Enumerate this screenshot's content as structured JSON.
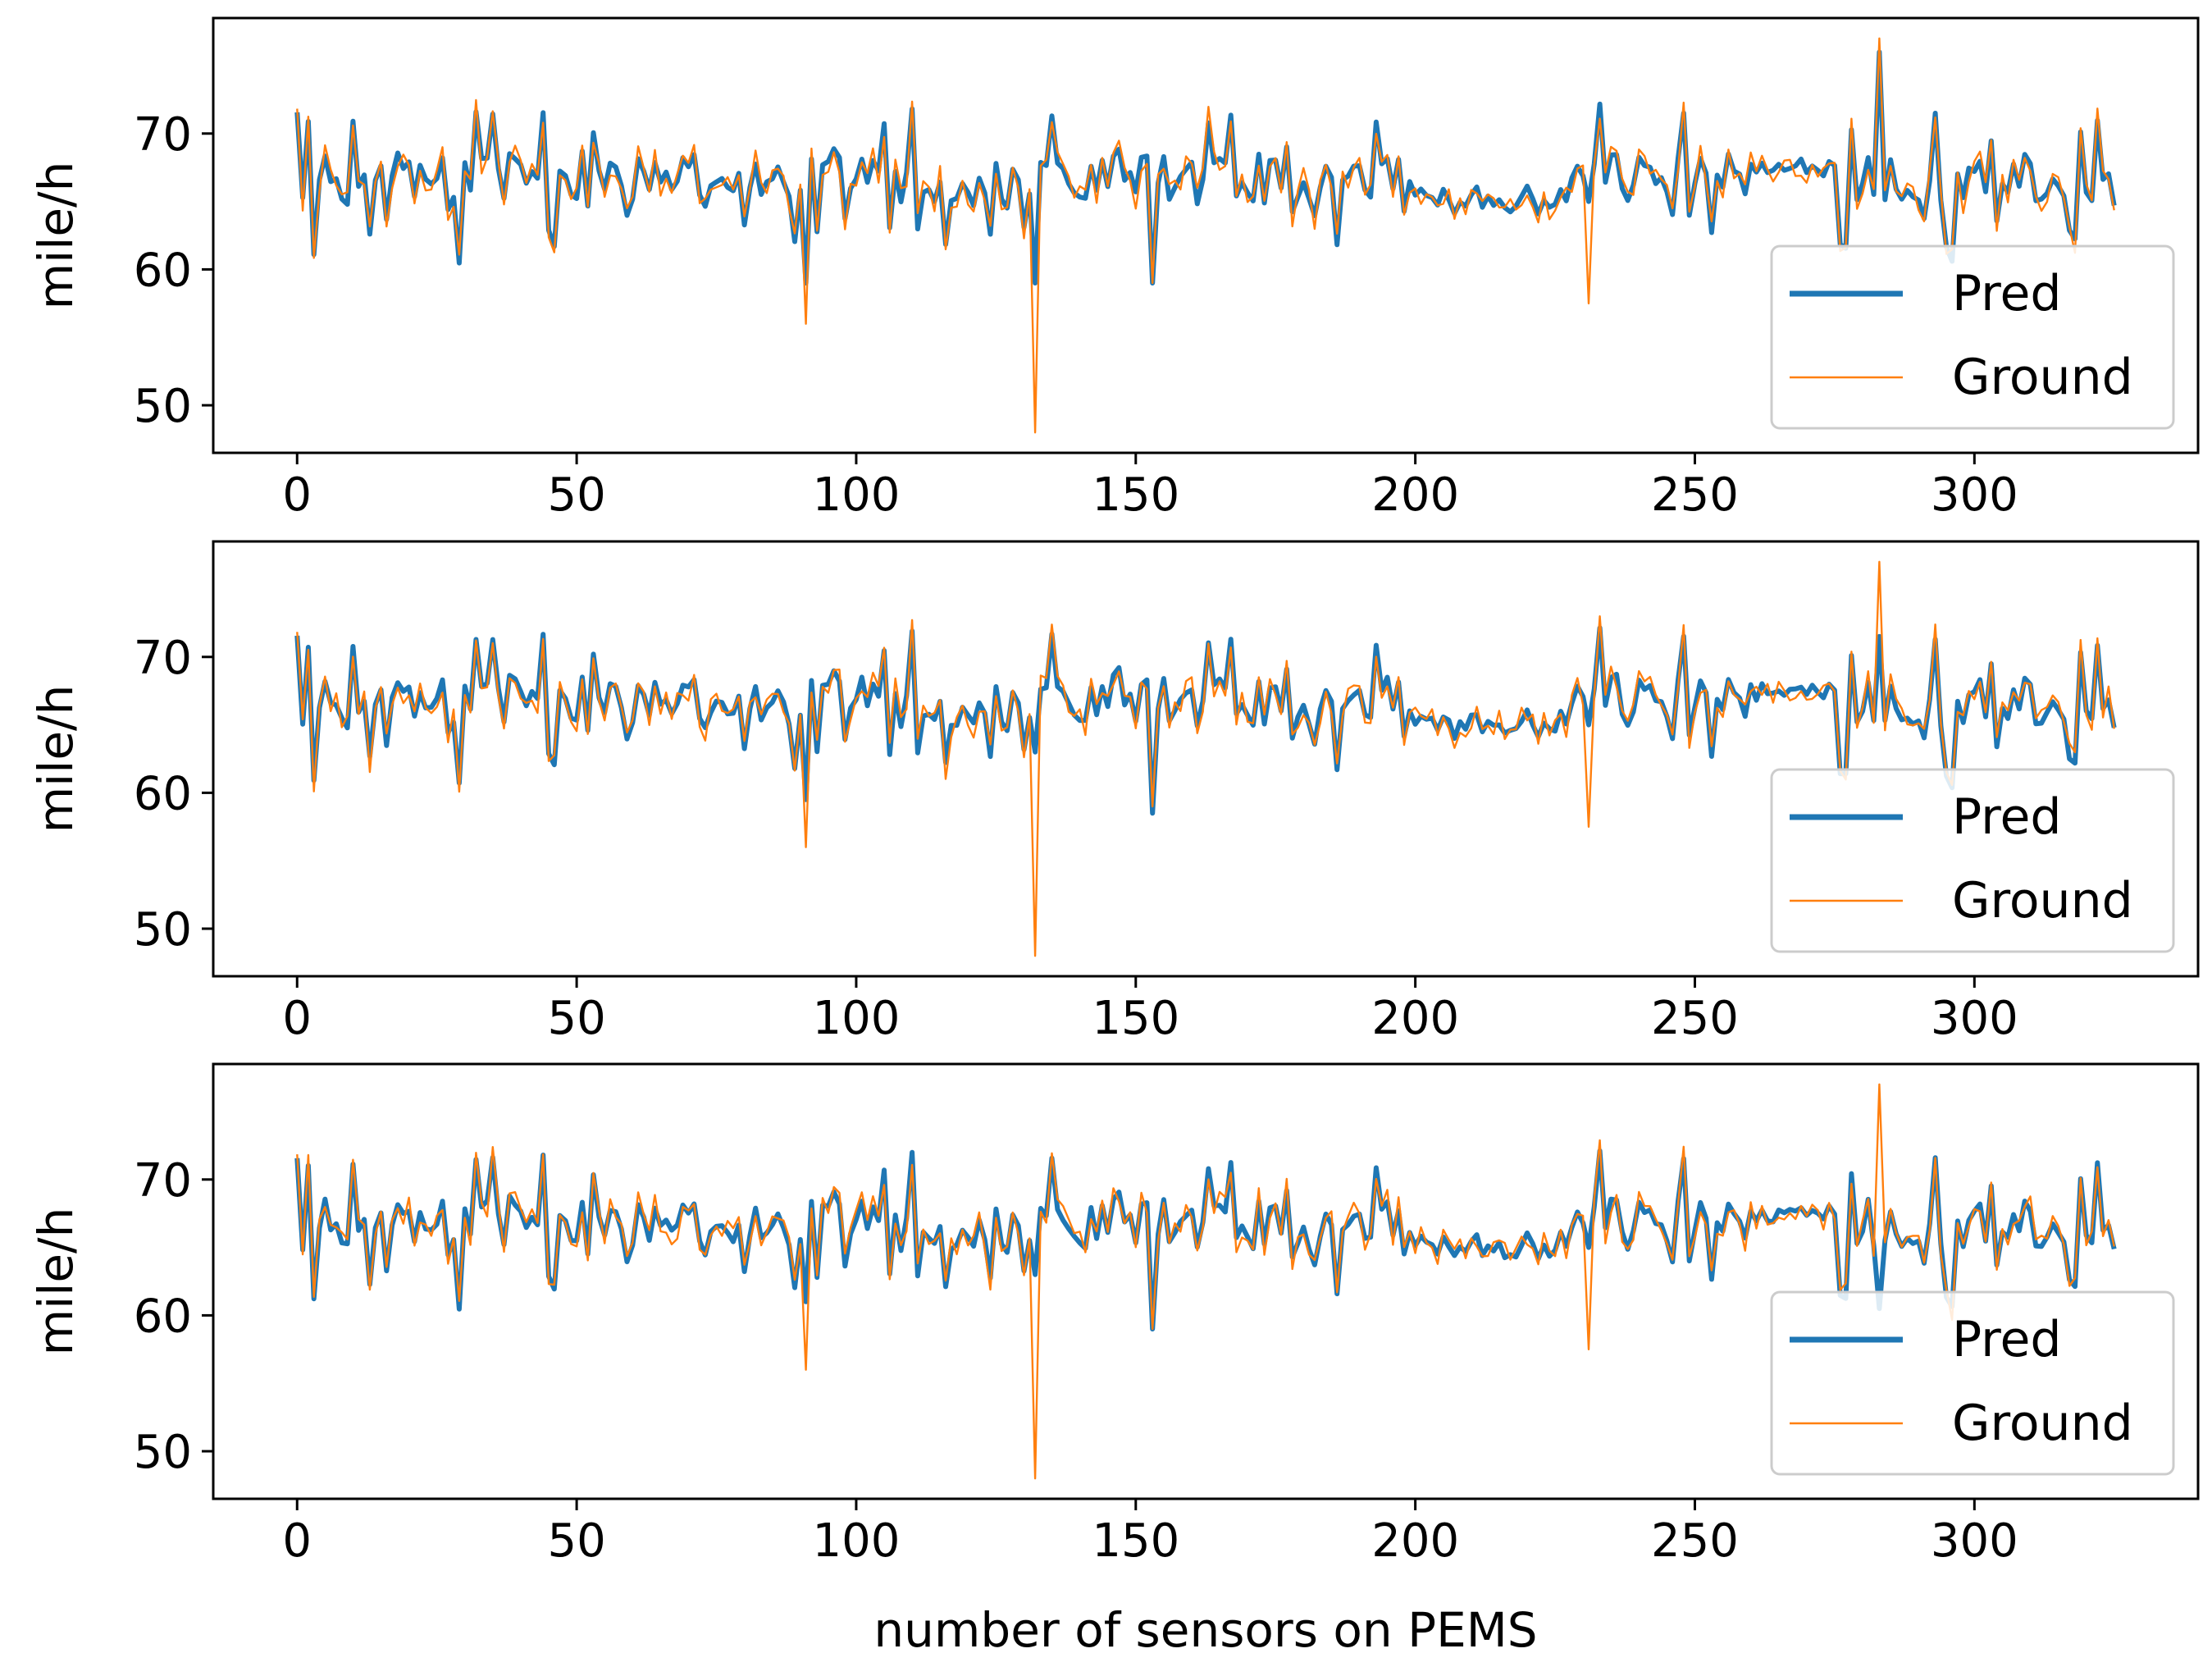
{
  "figure": {
    "xlabel": "number of sensors on PEMS"
  },
  "colors": {
    "pred": "#1f77b4",
    "ground": "#ff7f0e",
    "frame": "#000000",
    "legend_border": "#cccccc"
  },
  "chart_data": [
    {
      "type": "line",
      "panel": 1,
      "title": "",
      "xlabel": "",
      "ylabel": "mile/h",
      "xlim": [
        -15,
        340
      ],
      "ylim": [
        46.5,
        78.5
      ],
      "xticks": [
        0,
        50,
        100,
        150,
        200,
        250,
        300
      ],
      "yticks": [
        50,
        60,
        70
      ],
      "legend_position": "lower-right",
      "series": [
        {
          "name": "Pred",
          "key": "pred",
          "noise": 0.25,
          "dips": {
            "132": 59,
            "91": 59,
            "283": 76,
            "231": 65,
            "153": 59
          }
        },
        {
          "name": "Ground",
          "key": "ground",
          "noise": 1.0,
          "dips": {
            "132": 48,
            "91": 56,
            "283": 77,
            "231": 57.5,
            "153": 59
          }
        }
      ]
    },
    {
      "type": "line",
      "panel": 2,
      "title": "",
      "xlabel": "",
      "ylabel": "mile/h",
      "xlim": [
        -15,
        340
      ],
      "ylim": [
        46.5,
        78.5
      ],
      "xticks": [
        0,
        50,
        100,
        150,
        200,
        250,
        300
      ],
      "yticks": [
        50,
        60,
        70
      ],
      "legend_position": "lower-right",
      "series": [
        {
          "name": "Pred",
          "key": "pred",
          "noise": 0.25,
          "dips": {
            "132": 63,
            "91": 59.5,
            "283": 71.5,
            "231": 65,
            "153": 58.5
          }
        },
        {
          "name": "Ground",
          "key": "ground",
          "noise": 1.0,
          "dips": {
            "132": 48,
            "91": 56,
            "283": 77,
            "231": 57.5,
            "153": 59
          }
        }
      ]
    },
    {
      "type": "line",
      "panel": 3,
      "title": "",
      "xlabel": "number of sensors on PEMS",
      "ylabel": "mile/h",
      "xlim": [
        -15,
        340
      ],
      "ylim": [
        46.5,
        78.5
      ],
      "xticks": [
        0,
        50,
        100,
        150,
        200,
        250,
        300
      ],
      "yticks": [
        50,
        60,
        70
      ],
      "legend_position": "lower-right",
      "series": [
        {
          "name": "Pred",
          "key": "pred",
          "noise": 0.25,
          "dips": {
            "132": 63,
            "91": 61,
            "283": 60.5,
            "231": 65,
            "153": 59
          }
        },
        {
          "name": "Ground",
          "key": "ground",
          "noise": 1.0,
          "dips": {
            "132": 48,
            "91": 56,
            "283": 77,
            "231": 57.5,
            "153": 59
          }
        }
      ]
    }
  ]
}
